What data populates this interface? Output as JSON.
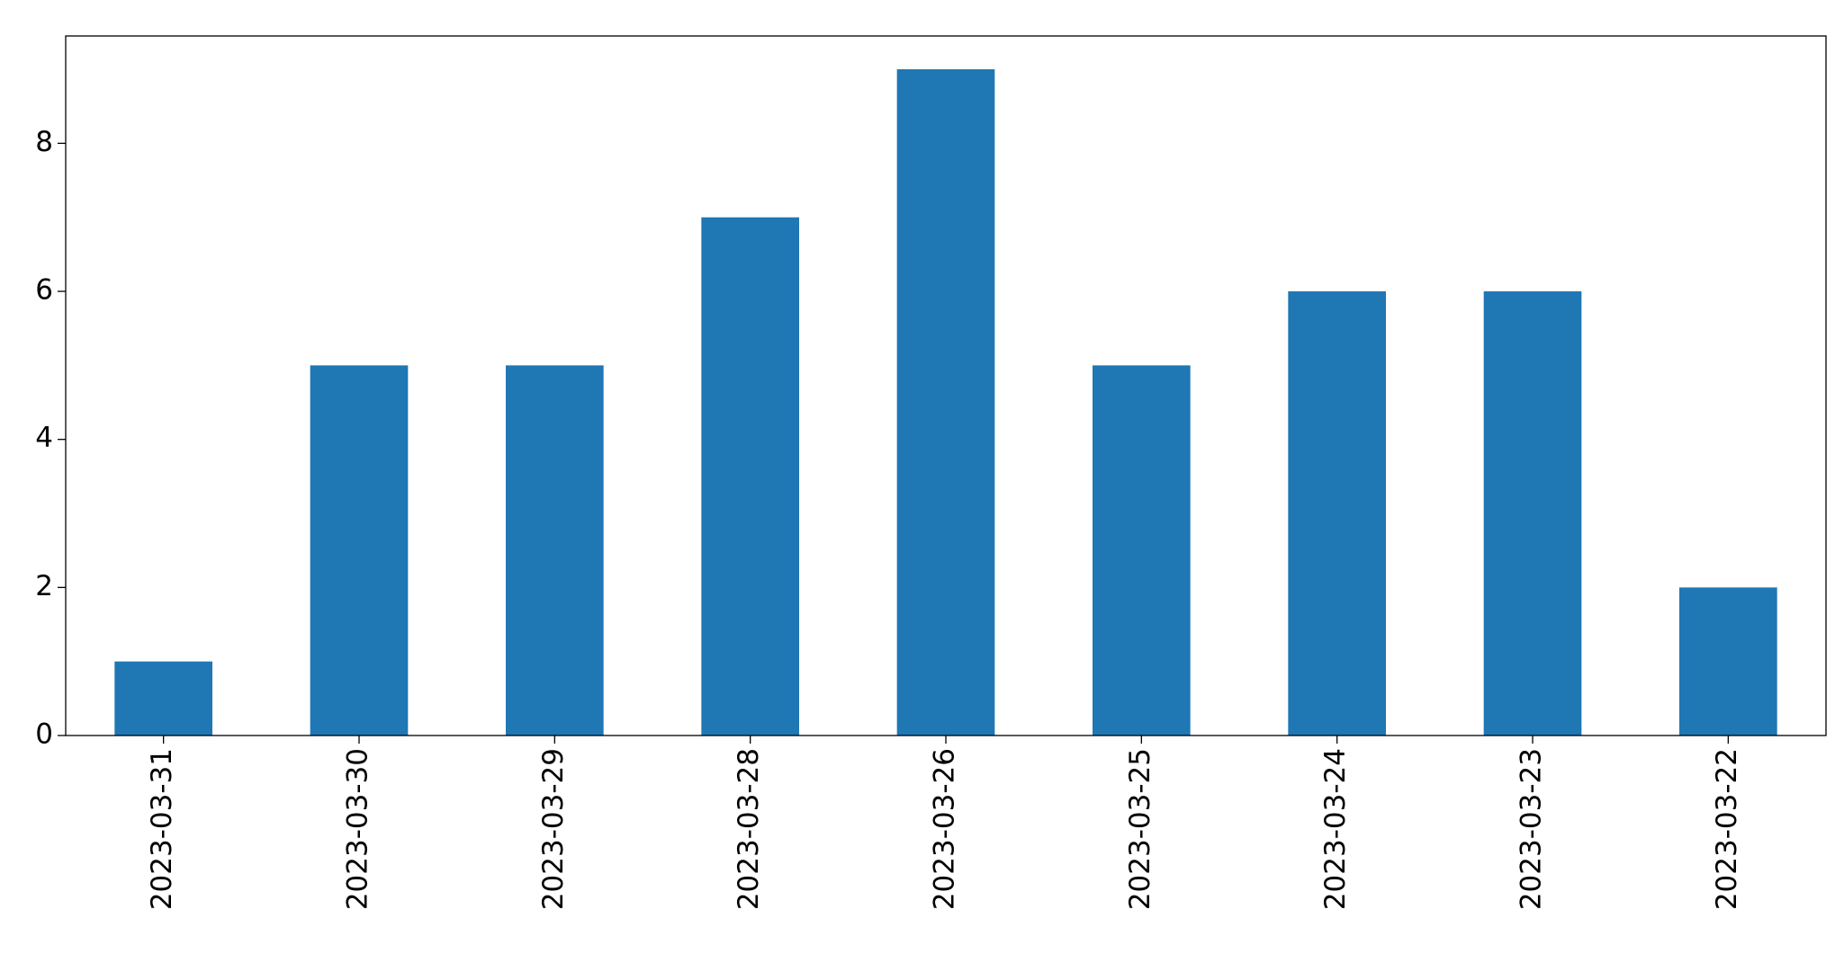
{
  "chart_data": {
    "type": "bar",
    "categories": [
      "2023-03-31",
      "2023-03-30",
      "2023-03-29",
      "2023-03-28",
      "2023-03-26",
      "2023-03-25",
      "2023-03-24",
      "2023-03-23",
      "2023-03-22"
    ],
    "values": [
      1,
      5,
      5,
      7,
      9,
      5,
      6,
      6,
      2
    ],
    "color": "#1f77b4",
    "ylim": [
      0,
      9.45
    ],
    "yticks": [
      0,
      2,
      4,
      6,
      8
    ],
    "grid": false
  }
}
